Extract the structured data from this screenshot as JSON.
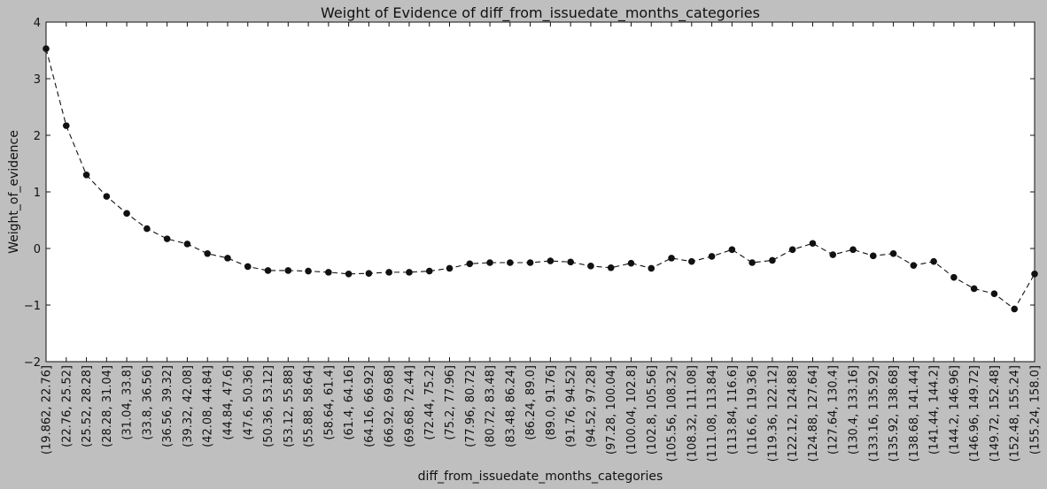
{
  "chart_data": {
    "type": "line",
    "title": "Weight of Evidence of diff_from_issuedate_months_categories",
    "xlabel": "diff_from_issuedate_months_categories",
    "ylabel": "Weight_of_evidence",
    "ylim": [
      -2,
      4
    ],
    "yticks": [
      {
        "value": -2,
        "label": "−2"
      },
      {
        "value": -1,
        "label": "−1"
      },
      {
        "value": 0,
        "label": "0"
      },
      {
        "value": 1,
        "label": "1"
      },
      {
        "value": 2,
        "label": "2"
      },
      {
        "value": 3,
        "label": "3"
      },
      {
        "value": 4,
        "label": "4"
      }
    ],
    "line_style": "dashed",
    "marker": "circle",
    "colors": {
      "line": "#111111",
      "marker": "#111111",
      "background": "#bfbfbf",
      "plot_area": "#ffffff"
    },
    "grid": false,
    "categories": [
      "(19.862, 22.76]",
      "(22.76, 25.52]",
      "(25.52, 28.28]",
      "(28.28, 31.04]",
      "(31.04, 33.8]",
      "(33.8, 36.56]",
      "(36.56, 39.32]",
      "(39.32, 42.08]",
      "(42.08, 44.84]",
      "(44.84, 47.6]",
      "(47.6, 50.36]",
      "(50.36, 53.12]",
      "(53.12, 55.88]",
      "(55.88, 58.64]",
      "(58.64, 61.4]",
      "(61.4, 64.16]",
      "(64.16, 66.92]",
      "(66.92, 69.68]",
      "(69.68, 72.44]",
      "(72.44, 75.2]",
      "(75.2, 77.96]",
      "(77.96, 80.72]",
      "(80.72, 83.48]",
      "(83.48, 86.24]",
      "(86.24, 89.0]",
      "(89.0, 91.76]",
      "(91.76, 94.52]",
      "(94.52, 97.28]",
      "(97.28, 100.04]",
      "(100.04, 102.8]",
      "(102.8, 105.56]",
      "(105.56, 108.32]",
      "(108.32, 111.08]",
      "(111.08, 113.84]",
      "(113.84, 116.6]",
      "(116.6, 119.36]",
      "(119.36, 122.12]",
      "(122.12, 124.88]",
      "(124.88, 127.64]",
      "(127.64, 130.4]",
      "(130.4, 133.16]",
      "(133.16, 135.92]",
      "(135.92, 138.68]",
      "(138.68, 141.44]",
      "(141.44, 144.2]",
      "(144.2, 146.96]",
      "(146.96, 149.72]",
      "(149.72, 152.48]",
      "(152.48, 155.24]",
      "(155.24, 158.0]"
    ],
    "series": [
      {
        "values": [
          3.53,
          2.17,
          1.3,
          0.92,
          0.62,
          0.35,
          0.17,
          0.08,
          -0.09,
          -0.17,
          -0.32,
          -0.39,
          -0.39,
          -0.4,
          -0.42,
          -0.45,
          -0.44,
          -0.42,
          -0.42,
          -0.4,
          -0.35,
          -0.27,
          -0.25,
          -0.25,
          -0.25,
          -0.22,
          -0.24,
          -0.31,
          -0.34,
          -0.26,
          -0.35,
          -0.17,
          -0.23,
          -0.14,
          -0.02,
          -0.25,
          -0.21,
          -0.02,
          0.09,
          -0.11,
          -0.02,
          -0.13,
          -0.09,
          -0.3,
          -0.23,
          -0.51,
          -0.71,
          -0.8,
          -1.07,
          -0.45
        ]
      }
    ]
  }
}
